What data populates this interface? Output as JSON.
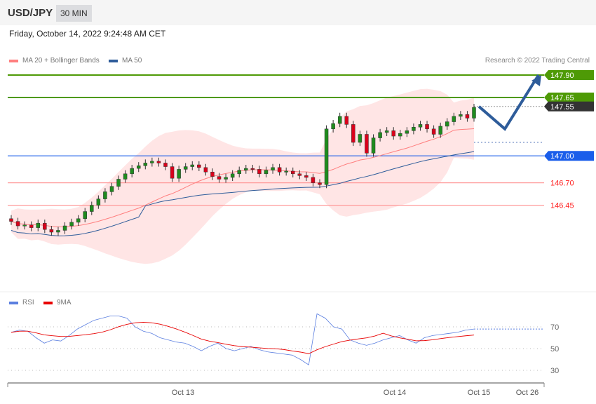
{
  "header": {
    "pair": "USD/JPY",
    "timeframe": "30 MIN"
  },
  "timestamp": "Friday, October 14, 2022 9:24:48 AM CET",
  "legend": {
    "ma20": "MA 20 + Bollinger Bands",
    "ma50": "MA 50",
    "rsi": "RSI",
    "ma9": "9MA"
  },
  "copyright": "Research © 2022 Trading Central",
  "colors": {
    "up": "#1e8c1e",
    "down": "#d9001b",
    "ma20": "#ff7f7f",
    "ma50": "#2e5c9a",
    "band": "#ffe5e5",
    "green": "#4e9a06",
    "blue": "#1a5eea",
    "dark": "#333333",
    "red": "#ff2020",
    "rsi": "#5b7fe0",
    "ma9": "#e80000"
  },
  "levels": [
    {
      "label": "147.90",
      "price": 147.9,
      "style": "green-tag"
    },
    {
      "label": "147.65",
      "price": 147.65,
      "style": "green-tag"
    },
    {
      "label": "147.55",
      "price": 147.55,
      "style": "dark-tag"
    },
    {
      "label": "147.00",
      "price": 147.0,
      "style": "blue-tag"
    },
    {
      "label": "146.70",
      "price": 146.7,
      "style": "red-text"
    },
    {
      "label": "146.45",
      "price": 146.45,
      "style": "red-text"
    }
  ],
  "chart_data": {
    "type": "candlestick",
    "closes": [
      146.27,
      146.22,
      146.23,
      146.2,
      146.25,
      146.18,
      146.15,
      146.17,
      146.22,
      146.26,
      146.3,
      146.38,
      146.45,
      146.52,
      146.6,
      146.66,
      146.74,
      146.8,
      146.86,
      146.89,
      146.92,
      146.94,
      146.92,
      146.88,
      146.75,
      146.85,
      146.88,
      146.9,
      146.87,
      146.82,
      146.77,
      146.74,
      146.76,
      146.8,
      146.84,
      146.86,
      146.85,
      146.8,
      146.84,
      146.87,
      146.82,
      146.83,
      146.8,
      146.78,
      146.76,
      146.7,
      146.68,
      147.3,
      147.36,
      147.44,
      147.35,
      147.15,
      147.24,
      147.03,
      147.2,
      147.26,
      147.28,
      147.22,
      147.25,
      147.28,
      147.32,
      147.35,
      147.3,
      147.24,
      147.33,
      147.38,
      147.44,
      147.46,
      147.42,
      147.54
    ],
    "forecast_path": [
      147.55,
      147.3,
      147.9
    ],
    "rsi": [
      65,
      67,
      66,
      60,
      55,
      58,
      57,
      62,
      68,
      72,
      76,
      78,
      80,
      80,
      78,
      70,
      66,
      64,
      60,
      58,
      56,
      55,
      52,
      48,
      52,
      55,
      50,
      48,
      50,
      52,
      49,
      47,
      46,
      45,
      44,
      40,
      35,
      82,
      78,
      70,
      68,
      58,
      55,
      53,
      55,
      58,
      60,
      62,
      58,
      55,
      60,
      62,
      63,
      64,
      65,
      67,
      68
    ],
    "rsi_ticks": [
      "70",
      "50",
      "30"
    ],
    "x_labels": [
      "Oct 13",
      "Oct 14",
      "Oct 15",
      "Oct 26"
    ]
  }
}
